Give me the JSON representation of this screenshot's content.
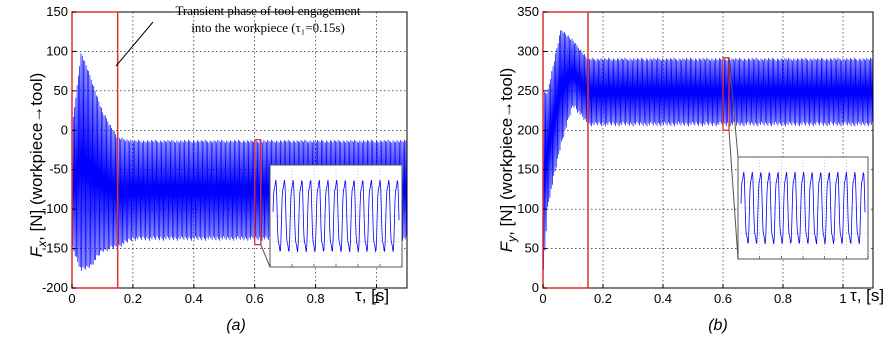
{
  "annotation": "Transient phase of tool engagement into the workpiece (τ₁=0.15s)",
  "annotation_line1": "Transient phase of tool engagement",
  "annotation_line2": "into the workpiece (τ₁=0.15s)",
  "colors": {
    "signal": "#0000ff",
    "highlight": "#e03030",
    "inset_frame": "#555555"
  },
  "chart_data": [
    {
      "type": "line",
      "caption": "(a)",
      "ylabel": "Fx, [N] (workpiece→tool)",
      "ylabel_main": "F",
      "ylabel_sub": "x",
      "ylabel_rest": ", [N] (workpiece→tool)",
      "xlabel": "τ, [s]",
      "xlim": [
        0,
        1.1
      ],
      "ylim": [
        -200,
        150
      ],
      "xticks": [
        0,
        0.2,
        0.4,
        0.6,
        0.8,
        1
      ],
      "xtick_labels": [
        "0",
        "0.2",
        "0.4",
        "0.6",
        "0.8",
        "1"
      ],
      "yticks": [
        -200,
        -150,
        -100,
        -50,
        0,
        50,
        100,
        150
      ],
      "ytick_labels": [
        "-200",
        "-150",
        "-100",
        "-50",
        "0",
        "50",
        "100",
        "150"
      ],
      "grid": true,
      "series": [
        {
          "envelope": [
            {
              "x": 0.0,
              "max": 5,
              "min": -150
            },
            {
              "x": 0.03,
              "max": 100,
              "min": -180
            },
            {
              "x": 0.06,
              "max": 70,
              "min": -175
            },
            {
              "x": 0.1,
              "max": 25,
              "min": -155
            },
            {
              "x": 0.15,
              "max": -8,
              "min": -150
            },
            {
              "x": 0.2,
              "max": -12,
              "min": -140
            },
            {
              "x": 1.1,
              "max": -12,
              "min": -140
            }
          ]
        }
      ],
      "highlight_transient": {
        "x": [
          0,
          0.15
        ],
        "y": [
          -200,
          150
        ]
      },
      "highlight_zoom": {
        "x": [
          0.6,
          0.62
        ],
        "y": [
          -145,
          -12
        ]
      }
    },
    {
      "type": "line",
      "caption": "(b)",
      "ylabel": "Fy, [N] (workpiece→tool)",
      "ylabel_main": "F",
      "ylabel_sub": "y",
      "ylabel_rest": ", [N] (workpiece→tool)",
      "xlabel": "τ, [s]",
      "xlim": [
        0,
        1.1
      ],
      "ylim": [
        0,
        350
      ],
      "xticks": [
        0,
        0.2,
        0.4,
        0.6,
        0.8,
        1
      ],
      "xtick_labels": [
        "0",
        "0.2",
        "0.4",
        "0.6",
        "0.8",
        "1"
      ],
      "yticks": [
        0,
        50,
        100,
        150,
        200,
        250,
        300,
        350
      ],
      "ytick_labels": [
        "0",
        "50",
        "100",
        "150",
        "200",
        "250",
        "300",
        "350"
      ],
      "grid": true,
      "series": [
        {
          "envelope": [
            {
              "x": 0.0,
              "max": 250,
              "min": 5
            },
            {
              "x": 0.015,
              "max": 250,
              "min": 100
            },
            {
              "x": 0.06,
              "max": 330,
              "min": 180
            },
            {
              "x": 0.1,
              "max": 315,
              "min": 230
            },
            {
              "x": 0.15,
              "max": 292,
              "min": 205
            },
            {
              "x": 1.1,
              "max": 292,
              "min": 205
            }
          ]
        }
      ],
      "highlight_transient": {
        "x": [
          0,
          0.15
        ],
        "y": [
          0,
          350
        ]
      },
      "highlight_zoom": {
        "x": [
          0.6,
          0.62
        ],
        "y": [
          200,
          292
        ]
      }
    }
  ]
}
